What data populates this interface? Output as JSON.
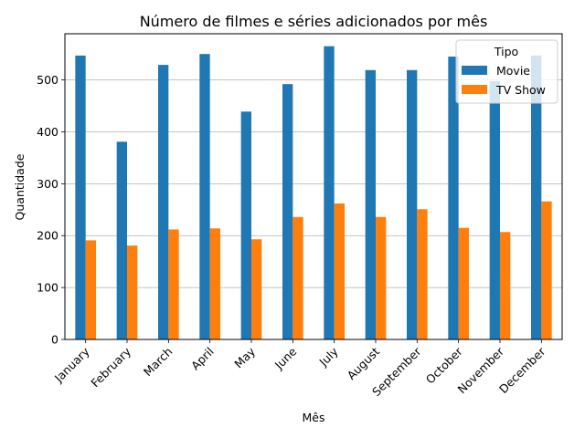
{
  "chart_data": {
    "type": "bar",
    "title": "Número de filmes e séries adicionados por mês",
    "xlabel": "Mês",
    "ylabel": "Quantidade",
    "categories": [
      "January",
      "February",
      "March",
      "April",
      "May",
      "June",
      "July",
      "August",
      "September",
      "October",
      "November",
      "December"
    ],
    "series": [
      {
        "name": "Movie",
        "color": "#1f77b4",
        "values": [
          547,
          381,
          529,
          550,
          439,
          492,
          565,
          519,
          519,
          545,
          498,
          547
        ]
      },
      {
        "name": "TV Show",
        "color": "#ff7f0e",
        "values": [
          191,
          181,
          212,
          214,
          193,
          236,
          262,
          236,
          251,
          215,
          207,
          266
        ]
      }
    ],
    "ylim": [
      0,
      589
    ],
    "yticks": [
      "0",
      "100",
      "200",
      "300",
      "400",
      "500"
    ],
    "grid": "y",
    "legend": {
      "title": "Tipo",
      "placement": "top-right"
    }
  }
}
